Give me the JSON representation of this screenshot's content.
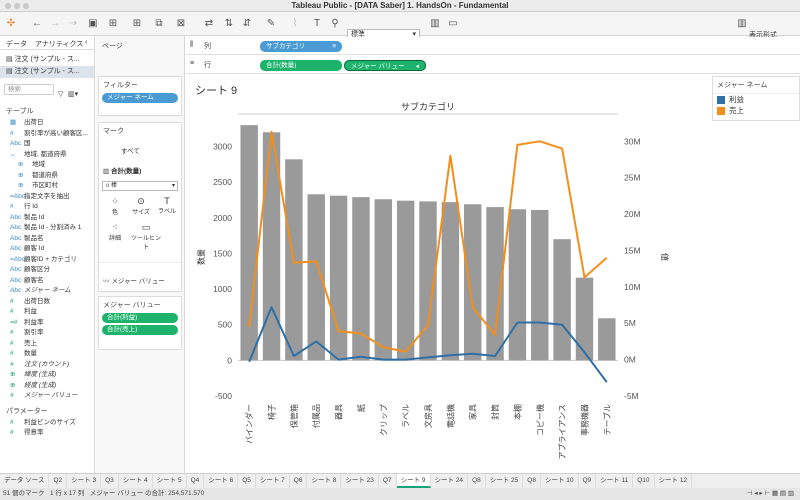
{
  "window": {
    "title": "Tableau Public - [DATA Saber] 1. HandsOn - Fundamental"
  },
  "toolbar": {
    "fit_select": "標準",
    "show_me": "表示形式"
  },
  "left_pane": {
    "tabs": [
      "データ",
      "アナリティクス"
    ],
    "datasources": [
      "注文 (サンプル - ス...",
      "注文 (サンプル - ス..."
    ],
    "search_placeholder": "検索",
    "tables_header": "テーブル",
    "fields": [
      {
        "icon": "▦",
        "label": "出荷日",
        "kind": "d"
      },
      {
        "icon": "#",
        "label": "割引率が高い顧客区...",
        "kind": "d"
      },
      {
        "icon": "Abc",
        "label": "国",
        "kind": "d"
      },
      {
        "icon": "⌄",
        "label": "地域, 都道府県",
        "kind": "d"
      },
      {
        "icon": "⊕",
        "label": "地域",
        "kind": "sub"
      },
      {
        "icon": "⊕",
        "label": "都道府県",
        "kind": "sub"
      },
      {
        "icon": "⊕",
        "label": "市区町村",
        "kind": "sub"
      },
      {
        "icon": "=Abc",
        "label": "指定文字を抽出",
        "kind": "d"
      },
      {
        "icon": "#",
        "label": "行 Id",
        "kind": "d"
      },
      {
        "icon": "Abc",
        "label": "製品 Id",
        "kind": "d"
      },
      {
        "icon": "Abc",
        "label": "製品 Id - 分割済み 1",
        "kind": "d"
      },
      {
        "icon": "Abc",
        "label": "製品名",
        "kind": "d"
      },
      {
        "icon": "Abc",
        "label": "顧客 Id",
        "kind": "d"
      },
      {
        "icon": "=Abc",
        "label": "顧客ID + カテゴリ",
        "kind": "d"
      },
      {
        "icon": "Abc",
        "label": "顧客区分",
        "kind": "d"
      },
      {
        "icon": "Abc",
        "label": "顧客名",
        "kind": "d"
      },
      {
        "icon": "Abc",
        "label": "メジャー ネーム",
        "kind": "d",
        "italic": true
      },
      {
        "icon": "#",
        "label": "出荷日数",
        "kind": "m"
      },
      {
        "icon": "#",
        "label": "利益",
        "kind": "m"
      },
      {
        "icon": "=#",
        "label": "利益率",
        "kind": "m"
      },
      {
        "icon": "#",
        "label": "割引率",
        "kind": "m"
      },
      {
        "icon": "#",
        "label": "売上",
        "kind": "m"
      },
      {
        "icon": "#",
        "label": "数量",
        "kind": "m"
      },
      {
        "icon": "#",
        "label": "注文 (カウント)",
        "kind": "m",
        "italic": true
      },
      {
        "icon": "⊕",
        "label": "緯度 (生成)",
        "kind": "m",
        "italic": true
      },
      {
        "icon": "⊕",
        "label": "経度 (生成)",
        "kind": "m",
        "italic": true
      },
      {
        "icon": "#",
        "label": "メジャー バリュー",
        "kind": "m",
        "italic": true
      }
    ],
    "params_header": "パラメーター",
    "params": [
      {
        "icon": "#",
        "label": "利益ビンのサイズ"
      },
      {
        "icon": "#",
        "label": "得意率"
      }
    ]
  },
  "mid_pane": {
    "pages_label": "ページ",
    "filters_label": "フィルター",
    "filter_pill": "メジャー ネーム",
    "marks_label": "マーク",
    "marks_all": "すべて",
    "marks_sum": "合計(数量)",
    "mark_type": "棒",
    "mark_buttons": [
      "色",
      "サイズ",
      "ラベル",
      "詳細",
      "ツールヒント"
    ],
    "marks_measure_values": "メジャー バリュー",
    "measure_values_label": "メジャー バリュー",
    "measure_value_pills": [
      "合計(利益)",
      "合計(売上)"
    ]
  },
  "shelves": {
    "columns_label": "列",
    "columns_pill": "サブカテゴリ",
    "rows_label": "行",
    "rows_pills": [
      "合計(数量)",
      "メジャー バリュー"
    ]
  },
  "sheet": {
    "title": "シート 9"
  },
  "legend": {
    "title": "メジャー ネーム",
    "items": [
      {
        "label": "利益",
        "color": "#2e6fa5"
      },
      {
        "label": "売上",
        "color": "#f28e1c"
      }
    ]
  },
  "chart_data": {
    "type": "bar",
    "title": "サブカテゴリ",
    "categories": [
      "バインダー",
      "椅子",
      "保管箱",
      "付属品",
      "器具",
      "紙",
      "クリップ",
      "ラベル",
      "文房具",
      "電話機",
      "家具",
      "封筒",
      "本棚",
      "コピー機",
      "アプライアンス",
      "事務機器",
      "テーブル"
    ],
    "bar_series": {
      "name": "数量",
      "values": [
        3300,
        3200,
        2820,
        2330,
        2310,
        2290,
        2260,
        2240,
        2230,
        2220,
        2190,
        2150,
        2120,
        2110,
        1700,
        1160,
        590
      ]
    },
    "line_series": [
      {
        "name": "利益",
        "color": "#2e6fa5",
        "values": [
          -0.3,
          7.2,
          0.5,
          2.5,
          0.0,
          0.4,
          0.0,
          0.0,
          0.3,
          0.6,
          0.8,
          0.5,
          5.1,
          5.1,
          4.8,
          1.0,
          -3.1
        ]
      },
      {
        "name": "売上",
        "color": "#f28e1c",
        "values": [
          4.5,
          31.3,
          13.3,
          13.5,
          3.9,
          3.6,
          1.7,
          1.1,
          4.7,
          28.0,
          7.2,
          3.4,
          29.5,
          30.0,
          29.0,
          11.3,
          14.0
        ]
      }
    ],
    "y_left": {
      "label": "数量",
      "ticks": [
        -500,
        0,
        500,
        1000,
        1500,
        2000,
        2500,
        3000
      ],
      "ylim": [
        -500,
        3400
      ]
    },
    "y_right": {
      "label": "値",
      "ticks": [
        "-5M",
        "0M",
        "5M",
        "10M",
        "15M",
        "20M",
        "25M",
        "30M"
      ],
      "tick_values": [
        -5,
        0,
        5,
        10,
        15,
        20,
        25,
        30
      ],
      "ylim": [
        -5,
        33.2
      ]
    },
    "bar_color": "#9a9a9a"
  },
  "bottom_tabs": [
    "データ ソース",
    "Q2",
    "シート 3",
    "Q3",
    "シート 4",
    "シート 5",
    "Q4",
    "シート 6",
    "Q5",
    "シート 7",
    "Q6",
    "シート 8",
    "シート 23",
    "Q7",
    "シート 9",
    "シート 24",
    "Q8",
    "シート 25",
    "Q8",
    "シート 10",
    "Q9",
    "シート 11",
    "Q10",
    "シート 12"
  ],
  "active_tab": "シート 9",
  "status": {
    "marks": "51 個のマーク",
    "rows_cols": "1 行 x 17 列",
    "sum": "メジャー バリュー の合計: 254,571.570"
  }
}
